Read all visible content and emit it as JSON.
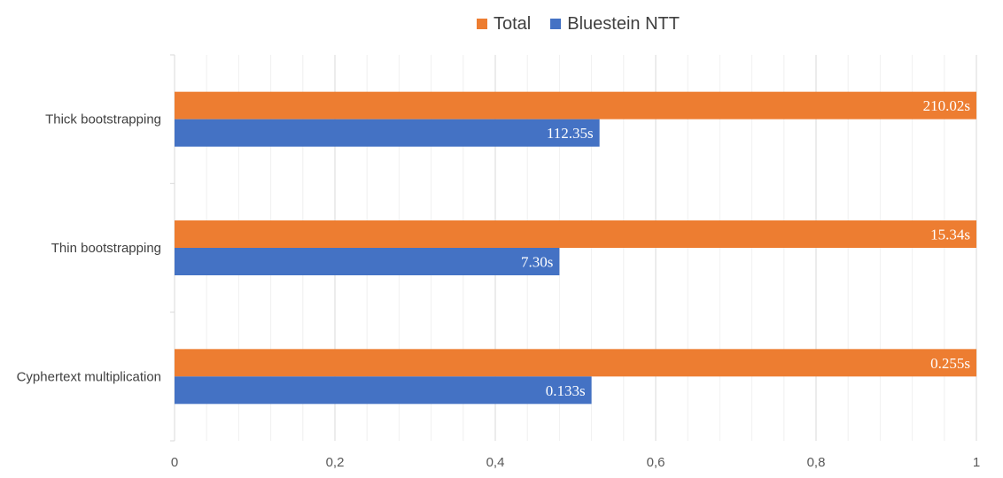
{
  "chart_data": {
    "type": "bar",
    "orientation": "horizontal",
    "title": "",
    "xlabel": "",
    "ylabel": "",
    "xlim": [
      0,
      1
    ],
    "x_ticks": [
      "0",
      "0,2",
      "0,4",
      "0,6",
      "0,8",
      "1"
    ],
    "categories": [
      "Thick bootstrapping",
      "Thin bootstrapping",
      "Cyphertext multiplication"
    ],
    "series": [
      {
        "name": "Total",
        "color": "#ed7d31",
        "values": [
          1.0,
          1.0,
          1.0
        ],
        "labels": [
          "210.02s",
          "15.34s",
          "0.255s"
        ]
      },
      {
        "name": "Bluestein NTT",
        "color": "#4472c4",
        "values": [
          0.53,
          0.48,
          0.52
        ],
        "labels": [
          "112.35s",
          "7.30s",
          "0.133s"
        ]
      }
    ],
    "legend_position": "top",
    "grid": true
  }
}
